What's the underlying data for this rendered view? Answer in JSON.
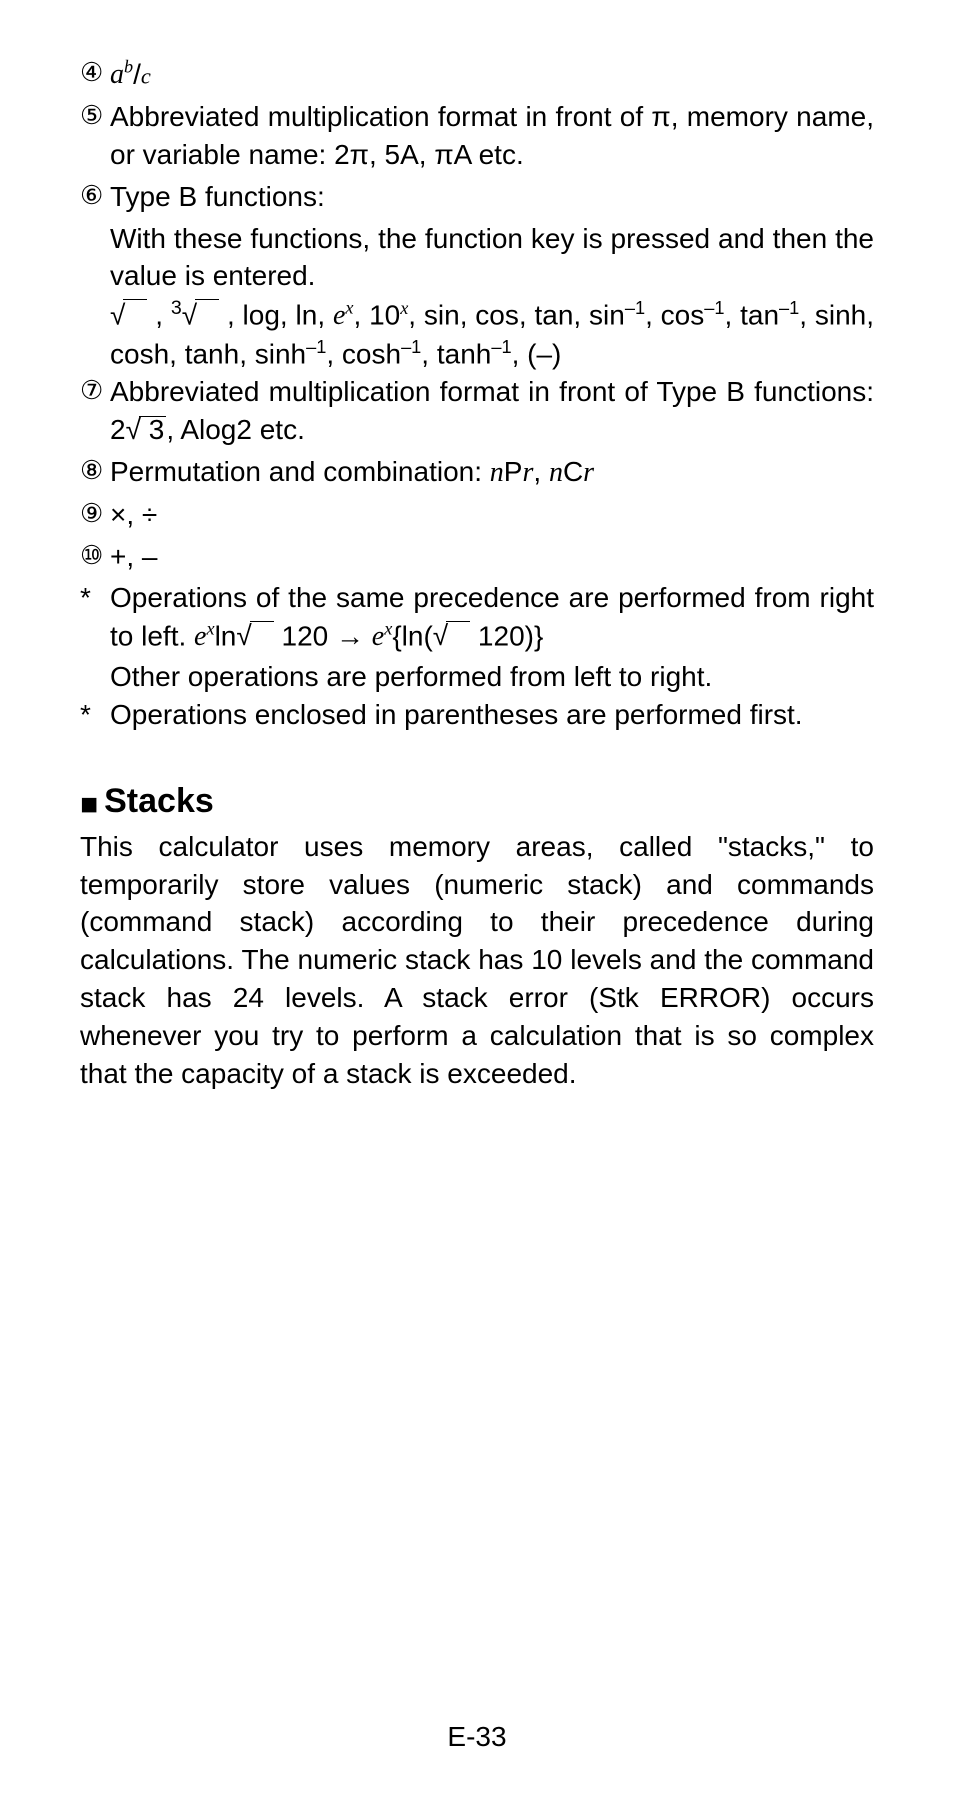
{
  "items": {
    "i4": {
      "marker": "④",
      "text_html": "<span class='ital'>a<span class='sup'>b</span></span>/<span class='ital' style='font-size:0.8em'>c</span>"
    },
    "i5": {
      "marker": "⑤",
      "text": "Abbreviated multiplication format in front of π, memory name, or variable name: 2π, 5A, πA etc."
    },
    "i6": {
      "marker": "⑥",
      "line1": "Type B functions:",
      "line2": "With these functions, the function key is pressed and then the value is entered.",
      "line3_html": "√<span class='sqrt-over-empty'></span> , <span style='font-size:0.7em;vertical-align:super'>3</span>√<span class='sqrt-over-empty'></span> , log, ln, <span class='ital'>e<span class='sup'>x</span></span>, 10<span class='sup'>x</span>, sin, cos, tan, sin<span class='sup-plain'>–1</span>, cos<span class='sup-plain'>–1</span>, tan<span class='sup-plain'>–1</span>, sinh, cosh, tanh, sinh<span class='sup-plain'>–1</span>, cosh<span class='sup-plain'>–1</span>, tanh<span class='sup-plain'>–1</span>, (–)"
    },
    "i7": {
      "marker": "⑦",
      "text_html": "Abbreviated multiplication format in front of Type B functions: 2<span style='white-space:nowrap'>√<span class='sqrt-over'>&nbsp;3</span></span>, Alog2 etc."
    },
    "i8": {
      "marker": "⑧",
      "text_html": "Permutation and combination: <span class='ital'>n</span>P<span class='ital'>r</span>, <span class='ital'>n</span>C<span class='ital'>r</span>"
    },
    "i9": {
      "marker": "⑨",
      "text": "×, ÷"
    },
    "i10": {
      "marker": "⑩",
      "text": "+, –"
    }
  },
  "notes": {
    "n1a_html": "Operations of the same precedence are performed from right to left. <span class='ital'>e<span class='sup'>x</span></span>ln<span style='white-space:nowrap'>√<span class='sqrt-over-empty'></span></span> 120 → <span class='ital'>e<span class='sup'>x</span></span>{ln(<span style='white-space:nowrap'>√<span class='sqrt-over-empty'></span></span> 120)}",
    "n1b": "Other operations are performed from left to right.",
    "n2": "Operations enclosed in parentheses are performed first."
  },
  "stacks": {
    "header": "Stacks",
    "body": "This calculator uses memory areas, called \"stacks,\" to temporarily store values (numeric stack) and commands (command stack) according to their precedence during calculations. The numeric stack has 10 levels and the command stack has 24 levels. A stack error (Stk ERROR) occurs whenever you try to perform a calculation that is so complex that the capacity of a stack is exceeded."
  },
  "page": "E-33"
}
